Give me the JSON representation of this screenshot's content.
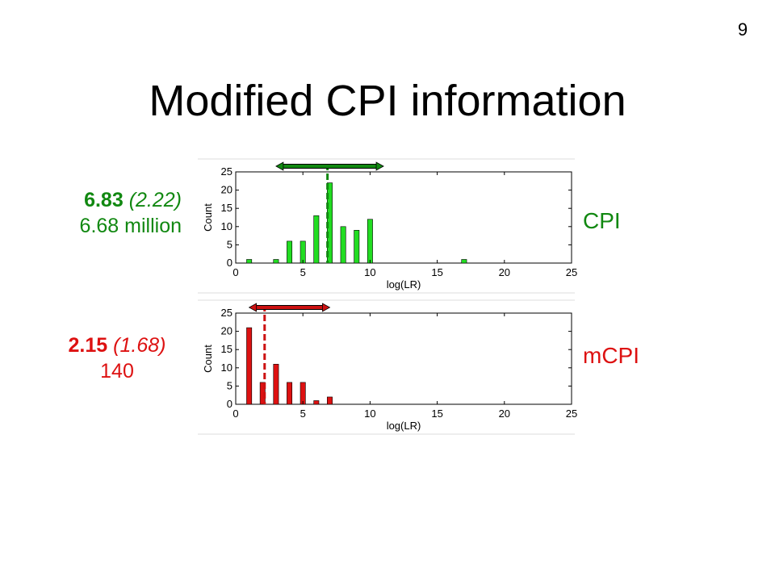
{
  "slide": {
    "page_number": "9",
    "title": "Modified CPI information"
  },
  "panels": [
    {
      "label": "CPI",
      "stat_bold": "6.83",
      "stat_paren": "(2.22)",
      "stat_line2": "6.68 million",
      "color": "#22dd22"
    },
    {
      "label": "mCPI",
      "stat_bold": "2.15",
      "stat_paren": "(1.68)",
      "stat_line2": "140",
      "color": "#dd1111"
    }
  ],
  "chart_data": [
    {
      "type": "bar",
      "xlabel": "log(LR)",
      "ylabel": "Count",
      "xlim": [
        0,
        25
      ],
      "ylim": [
        0,
        25
      ],
      "xticks": [
        0,
        5,
        10,
        15,
        20,
        25
      ],
      "yticks": [
        0,
        5,
        10,
        15,
        20,
        25
      ],
      "bar_color": "#22dd22",
      "line_color": "#118811",
      "x": [
        1,
        3,
        4,
        5,
        6,
        7,
        8,
        9,
        10,
        17
      ],
      "values": [
        1,
        1,
        6,
        6,
        13,
        22,
        10,
        9,
        12,
        1
      ],
      "mean_line": 6.83,
      "range_arrow": [
        3,
        11
      ]
    },
    {
      "type": "bar",
      "xlabel": "log(LR)",
      "ylabel": "Count",
      "xlim": [
        0,
        25
      ],
      "ylim": [
        0,
        25
      ],
      "xticks": [
        0,
        5,
        10,
        15,
        20,
        25
      ],
      "yticks": [
        0,
        5,
        10,
        15,
        20,
        25
      ],
      "bar_color": "#dd1111",
      "line_color": "#cc1111",
      "x": [
        1,
        2,
        3,
        4,
        5,
        6,
        7
      ],
      "values": [
        21,
        6,
        11,
        6,
        6,
        1,
        2
      ],
      "mean_line": 2.15,
      "range_arrow": [
        1,
        7
      ]
    }
  ]
}
